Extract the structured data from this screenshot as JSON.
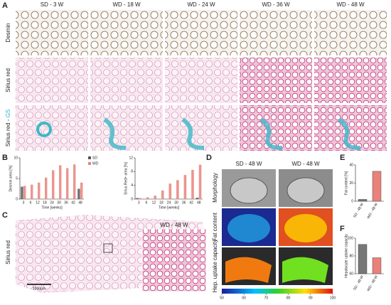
{
  "panels": {
    "A": {
      "label": "A",
      "columns": [
        "SD - 3 W",
        "WD - 18 W",
        "WD - 24 W",
        "WD - 36 W",
        "WD - 48 W"
      ],
      "rows": [
        "Desmin",
        "Sirius red"
      ],
      "row3": [
        "Sirius red - ",
        "GS"
      ]
    },
    "B": {
      "label": "B",
      "charts": [
        {
          "type": "bar",
          "ylabel": "Desmin area [%]",
          "xlabel": "Time [weeks]",
          "categories": [
            3,
            6,
            12,
            18,
            24,
            30,
            36,
            42,
            48
          ],
          "ylim": [
            0,
            10
          ],
          "yticks": [
            0,
            5,
            10
          ],
          "legend": true,
          "series": [
            {
              "name": "SD",
              "color": "#555555",
              "values": [
                3,
                null,
                null,
                null,
                null,
                null,
                null,
                null,
                2.5
              ]
            },
            {
              "name": "WD",
              "color": "#e8827a",
              "values": [
                3.2,
                3.5,
                4,
                5.2,
                7,
                8.2,
                7.5,
                8.4,
                4
              ]
            }
          ]
        },
        {
          "type": "bar",
          "ylabel": "Sirius Red+ area [%]",
          "xlabel": "Time [weeks]",
          "categories": [
            3,
            6,
            12,
            18,
            24,
            30,
            36,
            42,
            48
          ],
          "ylim": [
            0,
            12
          ],
          "yticks": [
            0,
            4,
            8,
            12
          ],
          "legend": false,
          "series": [
            {
              "name": "SD",
              "color": "#555555",
              "values": [
                0.3,
                null,
                null,
                null,
                null,
                null,
                null,
                null,
                0.4
              ]
            },
            {
              "name": "WD",
              "color": "#e8827a",
              "values": [
                0.3,
                0.5,
                1,
                2.5,
                4.5,
                5.5,
                7,
                8.5,
                10
              ]
            }
          ]
        }
      ]
    },
    "C": {
      "label": "C",
      "row_label": "Sirius red",
      "inset_title": "WD - 48 W",
      "scale_bar": "1000µm"
    },
    "D": {
      "label": "D",
      "columns": [
        "SD - 48 W",
        "WD - 48 W"
      ],
      "rows": [
        "Morphology",
        "Fat content",
        "Hep. uptake capacity"
      ],
      "colorbar": {
        "lim": [
          50,
          100
        ],
        "ticks": [
          50,
          60,
          70,
          80,
          90,
          100
        ]
      }
    },
    "E": {
      "label": "E",
      "chart": {
        "type": "bar",
        "ylabel": "Fat content [%]",
        "categories": [
          "SD - 48 W",
          "WD - 48 W"
        ],
        "values": [
          2,
          33
        ],
        "colors": [
          "#777777",
          "#e8827a"
        ],
        "ylim": [
          0,
          40
        ],
        "yticks": [
          0,
          20,
          40
        ]
      }
    },
    "F": {
      "label": "F",
      "chart": {
        "type": "bar",
        "ylabel": "Hepatocyte uptake capacity",
        "categories": [
          "SD - 48 W",
          "WD - 48 W"
        ],
        "values": [
          93,
          78
        ],
        "colors": [
          "#777777",
          "#e8827a"
        ],
        "ylim": [
          60,
          100
        ],
        "yticks": [
          60,
          80,
          100
        ]
      }
    }
  }
}
